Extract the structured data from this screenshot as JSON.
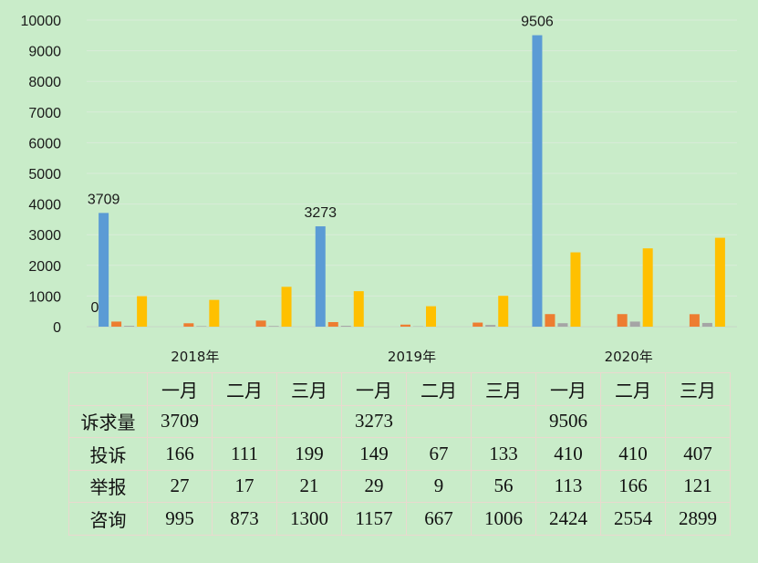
{
  "chart_data": {
    "type": "bar",
    "title": "",
    "xlabel": "",
    "ylabel": "",
    "ylim": [
      0,
      10000
    ],
    "yticks": [
      "0",
      "1000",
      "2000",
      "3000",
      "4000",
      "5000",
      "6000",
      "7000",
      "8000",
      "9000",
      "10000"
    ],
    "grid": true,
    "legend": "none",
    "years": [
      "2018年",
      "2019年",
      "2020年"
    ],
    "categories": [
      "一月",
      "二月",
      "三月",
      "一月",
      "二月",
      "三月",
      "一月",
      "二月",
      "三月"
    ],
    "series": [
      {
        "name": "诉求量",
        "color": "#5b9bd5",
        "values": [
          3709,
          null,
          null,
          3273,
          null,
          null,
          9506,
          null,
          null
        ]
      },
      {
        "name": "投诉",
        "color": "#ed7d31",
        "values": [
          166,
          111,
          199,
          149,
          67,
          133,
          410,
          410,
          407
        ]
      },
      {
        "name": "举报",
        "color": "#a5a5a5",
        "values": [
          27,
          17,
          21,
          29,
          9,
          56,
          113,
          166,
          121
        ]
      },
      {
        "name": "咨询",
        "color": "#ffc000",
        "values": [
          995,
          873,
          1300,
          1157,
          667,
          1006,
          2424,
          2554,
          2899
        ]
      }
    ],
    "bar_labels": [
      {
        "series": 0,
        "index": 0,
        "text": "3709"
      },
      {
        "series": 0,
        "index": 3,
        "text": "3273"
      },
      {
        "series": 0,
        "index": 6,
        "text": "9506"
      }
    ],
    "zero_label": "0"
  },
  "table": {
    "header": [
      "",
      "一月",
      "二月",
      "三月",
      "一月",
      "二月",
      "三月",
      "一月",
      "二月",
      "三月"
    ],
    "rows": [
      [
        "诉求量",
        "3709",
        "",
        "",
        "3273",
        "",
        "",
        "9506",
        "",
        ""
      ],
      [
        "投诉",
        "166",
        "111",
        "199",
        "149",
        "67",
        "133",
        "410",
        "410",
        "407"
      ],
      [
        "举报",
        "27",
        "17",
        "21",
        "29",
        "9",
        "56",
        "113",
        "166",
        "121"
      ],
      [
        "咨询",
        "995",
        "873",
        "1300",
        "1157",
        "667",
        "1006",
        "2424",
        "2554",
        "2899"
      ]
    ]
  }
}
